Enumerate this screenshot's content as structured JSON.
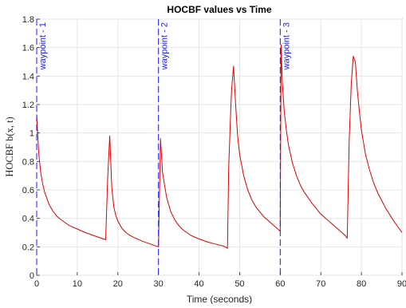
{
  "chart_data": {
    "type": "line",
    "title": "HOCBF values vs Time",
    "xlabel": "Time (seconds)",
    "ylabel": "HOCBF b(x, t)",
    "xlim": [
      0,
      90
    ],
    "ylim": [
      0,
      1.8
    ],
    "xticks": [
      "0",
      "10",
      "20",
      "30",
      "40",
      "50",
      "60",
      "70",
      "80",
      "90"
    ],
    "yticks": [
      "0",
      "0.2",
      "0.4",
      "0.6",
      "0.8",
      "1",
      "1.2",
      "1.4",
      "1.6",
      "1.8"
    ],
    "grid": true,
    "colors": {
      "series": "#dd0000",
      "markers": "#1a1aff",
      "grid": "#e6e6e6",
      "axis": "#262626"
    },
    "waypoints": [
      {
        "x": 0,
        "label": "waypoint - 1"
      },
      {
        "x": 30,
        "label": "waypoint - 2"
      },
      {
        "x": 60,
        "label": "waypoint - 3"
      }
    ],
    "series": [
      {
        "x": [
          0,
          0.5,
          1,
          1.5,
          2,
          3,
          4,
          5,
          6,
          7,
          8,
          10,
          12,
          14,
          16,
          17,
          17.5,
          18,
          18.5,
          19,
          19.5,
          20,
          21,
          22,
          23,
          24,
          26,
          28,
          30,
          30.5,
          31,
          32,
          33,
          34,
          35,
          36,
          38,
          40,
          42,
          44,
          46,
          47,
          47.3,
          47.8,
          48,
          48.5,
          49,
          49.5,
          50,
          51,
          52,
          53,
          54,
          56,
          58,
          60,
          60.2,
          60.5,
          61,
          61.5,
          62,
          63,
          64,
          65,
          66,
          68,
          70,
          72,
          74,
          76,
          76.5,
          77,
          77.5,
          78,
          78.5,
          79,
          79.5,
          80,
          81,
          82,
          83,
          84,
          86,
          88,
          90
        ],
        "y": [
          1.13,
          0.86,
          0.72,
          0.64,
          0.58,
          0.5,
          0.45,
          0.415,
          0.39,
          0.37,
          0.35,
          0.325,
          0.3,
          0.28,
          0.26,
          0.25,
          0.7,
          0.98,
          0.62,
          0.48,
          0.42,
          0.38,
          0.33,
          0.3,
          0.28,
          0.265,
          0.24,
          0.22,
          0.2,
          0.96,
          0.72,
          0.55,
          0.45,
          0.39,
          0.35,
          0.32,
          0.28,
          0.255,
          0.235,
          0.22,
          0.205,
          0.19,
          0.75,
          1.15,
          1.3,
          1.47,
          1.2,
          0.98,
          0.85,
          0.7,
          0.6,
          0.53,
          0.48,
          0.41,
          0.36,
          0.31,
          1.62,
          1.36,
          1.15,
          1.02,
          0.92,
          0.79,
          0.7,
          0.63,
          0.58,
          0.5,
          0.43,
          0.38,
          0.33,
          0.28,
          0.26,
          0.95,
          1.35,
          1.54,
          1.5,
          1.3,
          1.15,
          1.02,
          0.85,
          0.74,
          0.65,
          0.58,
          0.47,
          0.38,
          0.3
        ]
      }
    ]
  }
}
